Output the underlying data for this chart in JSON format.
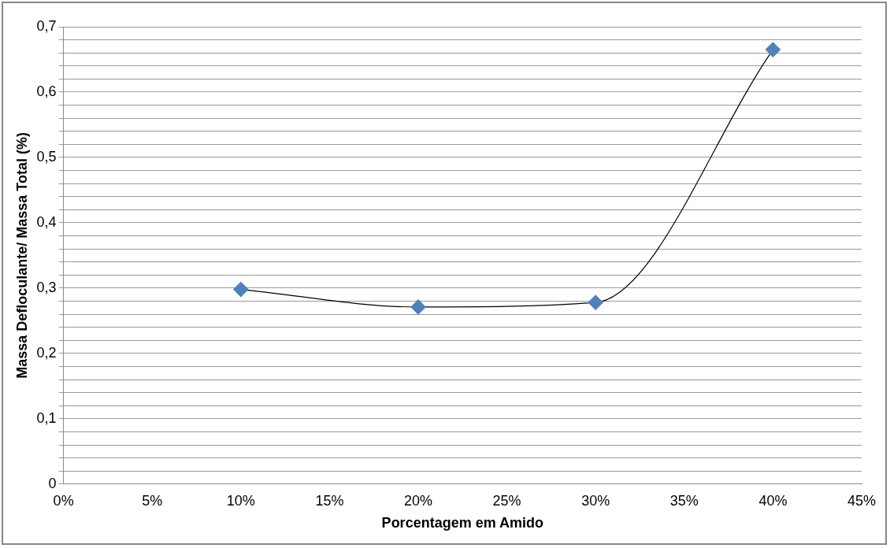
{
  "chart_data": {
    "type": "line",
    "xlabel": "Porcentagem em Amido",
    "ylabel": "Massa Defloculante/ Massa Total (%)",
    "x": [
      10,
      20,
      30,
      40
    ],
    "series": [
      {
        "color": "#4f81bd",
        "values": [
          0.298,
          0.271,
          0.278,
          0.665
        ]
      }
    ],
    "marker": "diamond",
    "grid": "y",
    "legend": false,
    "xlim": [
      0,
      45
    ],
    "xticks": [
      {
        "value": 0,
        "label": "0%"
      },
      {
        "value": 5,
        "label": "5%"
      },
      {
        "value": 10,
        "label": "10%"
      },
      {
        "value": 15,
        "label": "15%"
      },
      {
        "value": 20,
        "label": "20%"
      },
      {
        "value": 25,
        "label": "25%"
      },
      {
        "value": 30,
        "label": "30%"
      },
      {
        "value": 35,
        "label": "35%"
      },
      {
        "value": 40,
        "label": "40%"
      },
      {
        "value": 45,
        "label": "45%"
      }
    ],
    "ylim": [
      0,
      0.7
    ],
    "yticks": [
      {
        "value": 0,
        "label": "0"
      },
      {
        "value": 0.02,
        "label": null
      },
      {
        "value": 0.04,
        "label": null
      },
      {
        "value": 0.06,
        "label": null
      },
      {
        "value": 0.08,
        "label": null
      },
      {
        "value": 0.1,
        "label": "0,1"
      },
      {
        "value": 0.12,
        "label": null
      },
      {
        "value": 0.14,
        "label": null
      },
      {
        "value": 0.16,
        "label": null
      },
      {
        "value": 0.18,
        "label": null
      },
      {
        "value": 0.2,
        "label": "0,2"
      },
      {
        "value": 0.22,
        "label": null
      },
      {
        "value": 0.24,
        "label": null
      },
      {
        "value": 0.26,
        "label": null
      },
      {
        "value": 0.28,
        "label": null
      },
      {
        "value": 0.3,
        "label": "0,3"
      },
      {
        "value": 0.32,
        "label": null
      },
      {
        "value": 0.34,
        "label": null
      },
      {
        "value": 0.36,
        "label": null
      },
      {
        "value": 0.38,
        "label": null
      },
      {
        "value": 0.4,
        "label": "0,4"
      },
      {
        "value": 0.42,
        "label": null
      },
      {
        "value": 0.44,
        "label": null
      },
      {
        "value": 0.46,
        "label": null
      },
      {
        "value": 0.48,
        "label": null
      },
      {
        "value": 0.5,
        "label": "0,5"
      },
      {
        "value": 0.52,
        "label": null
      },
      {
        "value": 0.54,
        "label": null
      },
      {
        "value": 0.56,
        "label": null
      },
      {
        "value": 0.58,
        "label": null
      },
      {
        "value": 0.6,
        "label": "0,6"
      },
      {
        "value": 0.62,
        "label": null
      },
      {
        "value": 0.64,
        "label": null
      },
      {
        "value": 0.66,
        "label": null
      },
      {
        "value": 0.68,
        "label": null
      },
      {
        "value": 0.7,
        "label": "0,7"
      }
    ]
  }
}
